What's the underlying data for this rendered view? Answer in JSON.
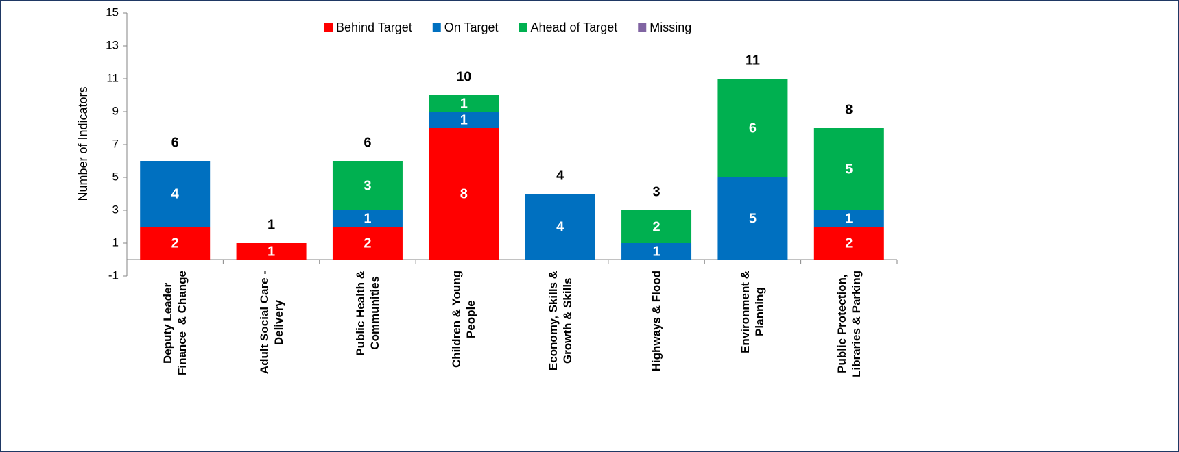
{
  "chart_data": {
    "type": "stacked_bar",
    "y_axis_label": "Number of Indicators",
    "categories": [
      "Deputy Leader\nFinance  & Change",
      "Adult Social Care -\nDelivery",
      "Public Health &\nCommunities",
      "Children & Young\nPeople",
      "Economy, Skills &\nGrowth & Skills",
      "Highways & Flood",
      "Environment &\nPlanning",
      "Public Protection,\nLibraries & Parking"
    ],
    "series": [
      {
        "name": "Behind Target",
        "color": "#ff0000",
        "values": [
          2,
          1,
          2,
          8,
          0,
          0,
          0,
          2
        ]
      },
      {
        "name": "On Target",
        "color": "#0070c0",
        "values": [
          4,
          0,
          1,
          1,
          4,
          1,
          5,
          1
        ]
      },
      {
        "name": "Ahead of Target",
        "color": "#00b050",
        "values": [
          0,
          0,
          3,
          1,
          0,
          2,
          6,
          5
        ]
      },
      {
        "name": "Missing",
        "color": "#8064a2",
        "values": [
          0,
          0,
          0,
          0,
          0,
          0,
          0,
          0
        ]
      }
    ],
    "totals": [
      6,
      1,
      6,
      10,
      4,
      3,
      11,
      8
    ],
    "ylim": [
      -1,
      15
    ],
    "yticks": [
      -1,
      1,
      3,
      5,
      7,
      9,
      11,
      13,
      15
    ],
    "legend": "top"
  }
}
